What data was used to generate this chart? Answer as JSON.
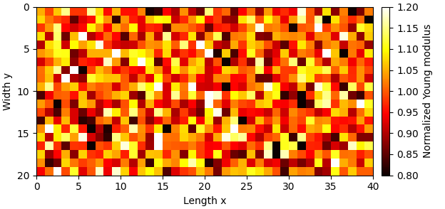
{
  "title": "",
  "xlabel": "Length x",
  "ylabel": "Width y",
  "colorbar_label": "Normalized Young modulus",
  "nx": 40,
  "ny": 20,
  "mean": 1.0,
  "std": 0.1,
  "seed": 42,
  "vmin": 0.8,
  "vmax": 1.2,
  "cmap": "hot",
  "xticks": [
    0,
    5,
    10,
    15,
    20,
    25,
    30,
    35,
    40
  ],
  "yticks": [
    0,
    5,
    10,
    15,
    20
  ],
  "colorbar_ticks": [
    0.8,
    0.85,
    0.9,
    0.95,
    1.0,
    1.05,
    1.1,
    1.15,
    1.2
  ],
  "figsize": [
    6.24,
    2.94
  ],
  "dpi": 100,
  "fontsize": 10,
  "tick_fontsize": 10
}
